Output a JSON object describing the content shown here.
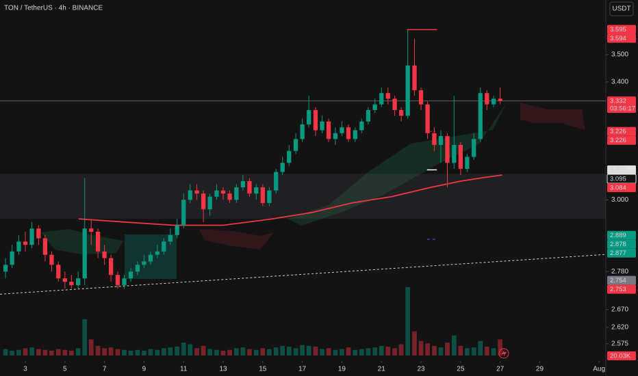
{
  "chart_data": {
    "type": "candlestick",
    "title": "TON / TetherUS · 4h · BINANCE",
    "currency": "USDT",
    "log_scale": true,
    "grid": false,
    "up_color": "#089981",
    "down_color": "#f23645",
    "xlim": [
      1.72,
      32.34
    ],
    "xticks": [
      3,
      5,
      7,
      9,
      11,
      13,
      15,
      17,
      19,
      21,
      23,
      25,
      27,
      29,
      {
        "value": 32,
        "label": "Aug"
      }
    ],
    "ylim": [
      2.543,
      3.709
    ],
    "yticks": [
      {
        "value": 3.5,
        "label": "3.500"
      },
      {
        "value": 3.4,
        "label": "3.400"
      },
      {
        "value": 3.0,
        "label": "3.000"
      },
      {
        "value": 2.78,
        "label": "2.780"
      },
      {
        "value": 2.67,
        "label": "2.670"
      },
      {
        "value": 2.62,
        "label": "2.620"
      },
      {
        "value": 2.575,
        "label": "2.575"
      }
    ],
    "x": [
      2,
      2.33,
      2.67,
      3,
      3.33,
      3.67,
      4,
      4.33,
      4.67,
      5,
      5.33,
      5.67,
      6,
      6.33,
      6.67,
      7,
      7.33,
      7.67,
      8,
      8.33,
      8.67,
      9,
      9.33,
      9.67,
      10,
      10.33,
      10.67,
      11,
      11.33,
      11.67,
      12,
      12.33,
      12.67,
      13,
      13.33,
      13.67,
      14,
      14.33,
      14.67,
      15,
      15.33,
      15.67,
      16,
      16.33,
      16.67,
      17,
      17.33,
      17.67,
      18,
      18.33,
      18.67,
      19,
      19.33,
      19.67,
      20,
      20.33,
      20.67,
      21,
      21.33,
      21.67,
      22,
      22.33,
      22.67,
      23,
      23.33,
      23.67,
      24,
      24.33,
      24.67,
      25,
      25.33,
      25.67,
      26,
      26.33,
      26.67,
      27
    ],
    "open": [
      2.78,
      2.8,
      2.84,
      2.87,
      2.86,
      2.91,
      2.88,
      2.83,
      2.8,
      2.76,
      2.75,
      2.74,
      2.76,
      2.91,
      2.9,
      2.84,
      2.82,
      2.77,
      2.74,
      2.76,
      2.78,
      2.8,
      2.81,
      2.83,
      2.84,
      2.87,
      2.89,
      2.92,
      3.0,
      3.03,
      3.02,
      2.97,
      3.01,
      3.03,
      3.02,
      3.0,
      3.04,
      3.06,
      3.02,
      3.04,
      2.99,
      3.03,
      3.09,
      3.12,
      3.16,
      3.2,
      3.25,
      3.3,
      3.23,
      3.26,
      3.2,
      3.22,
      3.24,
      3.2,
      3.23,
      3.26,
      3.3,
      3.32,
      3.36,
      3.34,
      3.3,
      3.28,
      3.46,
      3.37,
      3.32,
      3.22,
      3.18,
      3.21,
      3.12,
      3.18,
      3.1,
      3.14,
      3.2,
      3.36,
      3.32,
      3.34
    ],
    "high": [
      2.82,
      2.86,
      2.89,
      2.9,
      2.93,
      2.92,
      2.89,
      2.84,
      2.81,
      2.78,
      2.77,
      2.78,
      3.07,
      2.94,
      2.91,
      2.86,
      2.83,
      2.78,
      2.77,
      2.79,
      2.81,
      2.83,
      2.84,
      2.86,
      2.88,
      2.91,
      2.94,
      3.02,
      3.05,
      3.05,
      3.03,
      3.02,
      3.05,
      3.04,
      3.03,
      3.05,
      3.08,
      3.07,
      3.05,
      3.05,
      3.04,
      3.1,
      3.14,
      3.18,
      3.22,
      3.27,
      3.35,
      3.31,
      3.28,
      3.27,
      3.24,
      3.26,
      3.25,
      3.24,
      3.27,
      3.31,
      3.34,
      3.38,
      3.38,
      3.35,
      3.31,
      3.595,
      3.56,
      3.38,
      3.33,
      3.24,
      3.23,
      3.22,
      3.35,
      3.19,
      3.15,
      3.22,
      3.38,
      3.37,
      3.35,
      3.38
    ],
    "low": [
      2.76,
      2.79,
      2.83,
      2.84,
      2.85,
      2.86,
      2.81,
      2.78,
      2.75,
      2.73,
      2.73,
      2.73,
      2.74,
      2.86,
      2.82,
      2.8,
      2.75,
      2.73,
      2.73,
      2.75,
      2.77,
      2.79,
      2.8,
      2.82,
      2.83,
      2.86,
      2.88,
      2.91,
      2.99,
      3.0,
      2.93,
      2.95,
      3.0,
      3.0,
      2.99,
      2.99,
      3.03,
      3.01,
      3.0,
      2.98,
      2.98,
      3.02,
      3.08,
      3.11,
      3.15,
      3.19,
      3.24,
      3.21,
      3.22,
      3.19,
      3.18,
      3.21,
      3.19,
      3.19,
      3.22,
      3.25,
      3.29,
      3.31,
      3.32,
      3.28,
      3.26,
      3.27,
      3.35,
      3.3,
      3.2,
      3.16,
      3.12,
      3.04,
      3.1,
      3.08,
      3.09,
      3.13,
      3.19,
      3.3,
      3.31,
      3.32
    ],
    "close": [
      2.8,
      2.84,
      2.87,
      2.86,
      2.91,
      2.88,
      2.83,
      2.8,
      2.76,
      2.75,
      2.74,
      2.76,
      2.91,
      2.9,
      2.84,
      2.82,
      2.77,
      2.74,
      2.76,
      2.78,
      2.8,
      2.81,
      2.83,
      2.84,
      2.87,
      2.89,
      2.92,
      3.0,
      3.03,
      3.02,
      2.97,
      3.01,
      3.03,
      3.02,
      3.0,
      3.04,
      3.06,
      3.02,
      3.04,
      2.99,
      3.03,
      3.09,
      3.12,
      3.16,
      3.2,
      3.25,
      3.3,
      3.23,
      3.26,
      3.2,
      3.22,
      3.24,
      3.2,
      3.23,
      3.26,
      3.3,
      3.32,
      3.36,
      3.34,
      3.3,
      3.28,
      3.46,
      3.37,
      3.32,
      3.22,
      3.18,
      3.21,
      3.12,
      3.18,
      3.1,
      3.14,
      3.2,
      3.36,
      3.32,
      3.34,
      3.332
    ],
    "volume": [
      8,
      6,
      7,
      9,
      10,
      8,
      7,
      6,
      8,
      7,
      6,
      9,
      45,
      20,
      12,
      9,
      10,
      8,
      7,
      6,
      7,
      6,
      8,
      7,
      9,
      10,
      11,
      16,
      14,
      9,
      12,
      8,
      7,
      6,
      7,
      9,
      10,
      8,
      7,
      9,
      8,
      10,
      12,
      11,
      9,
      13,
      12,
      11,
      8,
      9,
      7,
      8,
      10,
      7,
      8,
      9,
      10,
      12,
      11,
      9,
      14,
      85,
      30,
      18,
      15,
      12,
      10,
      16,
      25,
      12,
      9,
      10,
      18,
      11,
      9,
      20.03
    ],
    "volume_label": "20.03K",
    "moving_average": {
      "color": "#f23645",
      "x": [
        5.7,
        8,
        10.5,
        13,
        15.5,
        17.5,
        19.5,
        21.5,
        23.5,
        25,
        26,
        27.1
      ],
      "values": [
        2.94,
        2.93,
        2.92,
        2.92,
        2.94,
        2.96,
        2.99,
        3.01,
        3.04,
        3.06,
        3.07,
        3.08
      ]
    },
    "zone": {
      "values": [
        2.94,
        3.084
      ],
      "color": "#5d606b"
    },
    "levels": [
      {
        "value": 3.594,
        "color": "#f23645",
        "style": "solid",
        "x": [
          22.3,
          23.8
        ]
      },
      {
        "value": 3.226,
        "color": "#f23645",
        "style": "dotted",
        "x": [
          23.3,
          23.8
        ]
      },
      {
        "value": 3.097,
        "color": "#ffffff",
        "style": "solid",
        "x": [
          23.3,
          23.8
        ]
      },
      {
        "value": 2.877,
        "color": "#2962ff",
        "style": "dashed",
        "x": [
          23.3,
          23.8
        ]
      },
      {
        "value": 3.332,
        "color": "#5d606b",
        "style": "solid",
        "x": [
          1.72,
          32.34
        ]
      }
    ],
    "trend_line": {
      "color": "#d1d4dc",
      "x": [
        1.72,
        32.34
      ],
      "values": [
        2.714,
        2.831
      ]
    },
    "price_tags": [
      {
        "value": 3.595,
        "label": "3.595",
        "color": "#f23645"
      },
      {
        "value": 3.594,
        "label": "3.594",
        "color": "#f23645"
      },
      {
        "value": 3.332,
        "label": "3.332",
        "sub": "03:56:17",
        "color": "#f23645"
      },
      {
        "value": 3.226,
        "label": "3.226",
        "color": "#f23645"
      },
      {
        "value": 3.226,
        "label": "3.226",
        "color": "#f23645"
      },
      {
        "value": 3.097,
        "label": "3.097",
        "color": "#e0e0e0"
      },
      {
        "value": 3.095,
        "label": "3.095",
        "color": "#131313"
      },
      {
        "value": 3.084,
        "label": "3.084",
        "color": "#f23645"
      },
      {
        "value": 2.889,
        "label": "2.889",
        "color": "#089981"
      },
      {
        "value": 2.878,
        "label": "2.878",
        "color": "#089981"
      },
      {
        "value": 2.877,
        "label": "2.877",
        "color": "#089981"
      },
      {
        "value": 2.754,
        "label": "2.754",
        "color": "#787b86"
      },
      {
        "value": 2.753,
        "label": "2.753",
        "color": "#f23645"
      }
    ]
  }
}
